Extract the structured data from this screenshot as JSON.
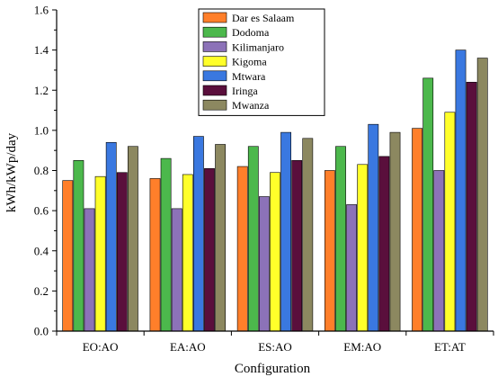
{
  "chart_data": {
    "type": "bar",
    "categories": [
      "EO:AO",
      "EA:AO",
      "ES:AO",
      "EM:AO",
      "ET:AT"
    ],
    "series": [
      {
        "name": "Dar es Salaam",
        "color": "#ff7f2a",
        "values": [
          0.75,
          0.76,
          0.82,
          0.8,
          1.01
        ]
      },
      {
        "name": "Dodoma",
        "color": "#4cb84c",
        "values": [
          0.85,
          0.86,
          0.92,
          0.92,
          1.26
        ]
      },
      {
        "name": "Kilimanjaro",
        "color": "#8c72b8",
        "values": [
          0.61,
          0.61,
          0.67,
          0.63,
          0.8
        ]
      },
      {
        "name": "Kigoma",
        "color": "#ffff2a",
        "values": [
          0.77,
          0.78,
          0.79,
          0.83,
          1.09
        ]
      },
      {
        "name": "Mtwara",
        "color": "#3a78e0",
        "values": [
          0.94,
          0.97,
          0.99,
          1.03,
          1.4
        ]
      },
      {
        "name": "Iringa",
        "color": "#5a0f3c",
        "values": [
          0.79,
          0.81,
          0.85,
          0.87,
          1.24
        ]
      },
      {
        "name": "Mwanza",
        "color": "#8c8860",
        "values": [
          0.92,
          0.93,
          0.96,
          0.99,
          1.36
        ]
      }
    ],
    "xlabel": "Configuration",
    "ylabel": "kWh/kWp/day",
    "ylim": [
      0,
      1.6
    ],
    "yticks": [
      "0.0",
      "0.2",
      "0.4",
      "0.6",
      "0.8",
      "1.0",
      "1.2",
      "1.4",
      "1.6"
    ],
    "grid": false,
    "legend_position": "top-center"
  }
}
